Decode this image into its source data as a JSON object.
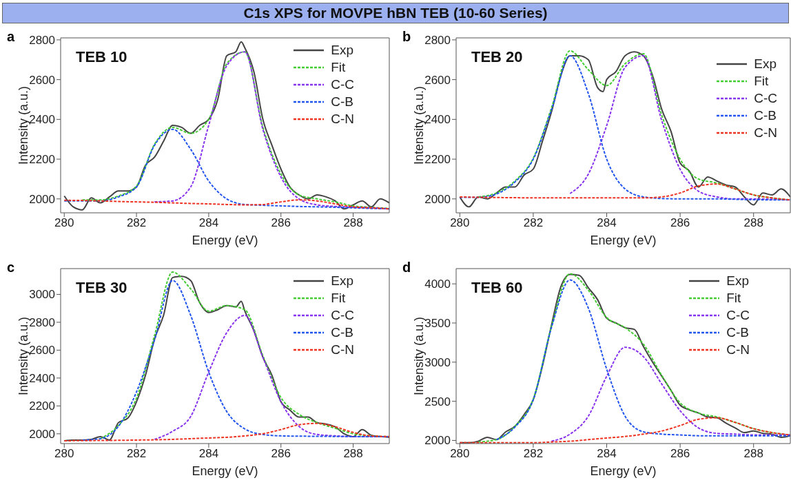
{
  "chart_data": [
    {
      "type": "line",
      "title": "C1s XPS for MOVPE hBN TEB (10-60 Series)",
      "annotations": [
        "a",
        "TEB 10"
      ],
      "xlabel": "Energy (eV)",
      "ylabel": "Intensity (a.u.)",
      "xlim": [
        279.9,
        289
      ],
      "xticks": [
        280,
        282,
        284,
        286,
        288
      ],
      "ylim": [
        1930,
        2810
      ],
      "yticks": [
        2000,
        2200,
        2400,
        2600,
        2800
      ],
      "legend": "top right",
      "x": [
        280,
        280.5,
        281,
        281.5,
        282,
        282.5,
        283,
        283.5,
        284,
        284.5,
        285,
        285.5,
        286,
        286.5,
        287,
        287.5,
        288,
        288.5,
        289
      ],
      "series": [
        {
          "name": "Exp",
          "color": "#444444",
          "line_style": "solid",
          "x": [
            280,
            280.25,
            280.5,
            280.75,
            281,
            281.25,
            281.5,
            281.75,
            282,
            282.25,
            282.5,
            282.75,
            283,
            283.25,
            283.5,
            283.75,
            284,
            284.25,
            284.5,
            284.75,
            284.9,
            285,
            285.25,
            285.5,
            285.75,
            286,
            286.25,
            286.5,
            286.75,
            287,
            287.25,
            287.5,
            287.75,
            288,
            288.25,
            288.5,
            288.75,
            289
          ],
          "values": [
            2015,
            1960,
            1945,
            2005,
            1980,
            2010,
            2040,
            2040,
            2060,
            2170,
            2210,
            2290,
            2370,
            2360,
            2330,
            2370,
            2400,
            2500,
            2720,
            2740,
            2790,
            2760,
            2640,
            2400,
            2270,
            2150,
            2060,
            2020,
            2000,
            2020,
            2010,
            1990,
            1950,
            1970,
            1990,
            1960,
            2000,
            1980
          ]
        },
        {
          "name": "Fit",
          "color": "#44cc33",
          "line_style": "dashed",
          "values": [
            null,
            1995,
            1995,
            2015,
            2065,
            2275,
            2360,
            2330,
            2400,
            2680,
            2740,
            2360,
            2125,
            2020,
            2000,
            1985,
            1965,
            1958,
            1952
          ]
        },
        {
          "name": "C-C",
          "color": "#8833ee",
          "line_style": "dashed",
          "values": [
            null,
            null,
            null,
            null,
            null,
            1985,
            1990,
            2060,
            2370,
            2670,
            2740,
            2350,
            2110,
            2000,
            1970,
            1962,
            1958,
            1955,
            1950
          ]
        },
        {
          "name": "C-B",
          "color": "#2255ee",
          "line_style": "dashed",
          "values": [
            1990,
            1990,
            1990,
            2010,
            2060,
            2270,
            2350,
            2250,
            2090,
            2000,
            1972,
            1968,
            1965,
            1962,
            1960,
            1958,
            1955,
            1952,
            1950
          ]
        },
        {
          "name": "C-N",
          "color": "#ee3322",
          "line_style": "dashed",
          "values": [
            1993,
            1992,
            1990,
            1987,
            1985,
            1983,
            1980,
            1977,
            1975,
            1972,
            1970,
            1972,
            1985,
            1995,
            1990,
            1975,
            1960,
            1955,
            1950
          ]
        }
      ]
    },
    {
      "type": "line",
      "annotations": [
        "b",
        "TEB 20"
      ],
      "xlabel": "Energy (eV)",
      "ylabel": "Intensity (a.u.)",
      "xlim": [
        279.9,
        289
      ],
      "xticks": [
        280,
        282,
        284,
        286,
        288
      ],
      "ylim": [
        1930,
        2810
      ],
      "yticks": [
        2000,
        2200,
        2400,
        2600,
        2800
      ],
      "legend": "right",
      "x": [
        280,
        280.5,
        281,
        281.5,
        282,
        282.5,
        283,
        283.5,
        284,
        284.5,
        285,
        285.5,
        286,
        286.5,
        287,
        287.5,
        288,
        288.5,
        289
      ],
      "series": [
        {
          "name": "Exp",
          "color": "#444444",
          "line_style": "solid",
          "x": [
            280,
            280.25,
            280.5,
            280.75,
            281,
            281.25,
            281.5,
            281.75,
            282,
            282.25,
            282.5,
            282.75,
            283,
            283.25,
            283.5,
            283.75,
            283.9,
            284,
            284.25,
            284.5,
            284.75,
            285,
            285.25,
            285.5,
            285.75,
            286,
            286.25,
            286.5,
            286.75,
            287,
            287.25,
            287.5,
            287.75,
            288,
            288.25,
            288.5,
            288.75,
            289
          ],
          "values": [
            2010,
            1960,
            2010,
            2000,
            2030,
            2060,
            2060,
            2120,
            2150,
            2290,
            2440,
            2620,
            2720,
            2720,
            2700,
            2560,
            2540,
            2600,
            2640,
            2720,
            2740,
            2720,
            2620,
            2450,
            2340,
            2180,
            2140,
            2060,
            2110,
            2090,
            2070,
            2060,
            2010,
            1970,
            2030,
            2020,
            2050,
            2010
          ]
        },
        {
          "name": "Fit",
          "color": "#44cc33",
          "line_style": "dashed",
          "values": [
            null,
            2010,
            2030,
            2090,
            2205,
            2460,
            2745,
            2650,
            2570,
            2680,
            2730,
            2420,
            2200,
            2100,
            2080,
            2050,
            2020,
            2005,
            1995
          ]
        },
        {
          "name": "C-C",
          "color": "#8833ee",
          "line_style": "dashed",
          "values": [
            null,
            null,
            null,
            null,
            null,
            null,
            2027,
            2125,
            2369,
            2662,
            2720,
            2393,
            2149,
            2039,
            2010,
            2000,
            2000,
            1998,
            1995
          ]
        },
        {
          "name": "C-B",
          "color": "#2255ee",
          "line_style": "dashed",
          "values": [
            2008,
            2008,
            2025,
            2085,
            2200,
            2450,
            2720,
            2530,
            2200,
            2050,
            2010,
            2002,
            2000,
            2000,
            2000,
            1998,
            1996,
            1995,
            1995
          ]
        },
        {
          "name": "C-N",
          "color": "#ee3322",
          "line_style": "dashed",
          "values": [
            2010,
            2008,
            2007,
            2006,
            2005,
            2005,
            2005,
            2005,
            2005,
            2005,
            2005,
            2010,
            2030,
            2065,
            2075,
            2050,
            2020,
            2005,
            1995
          ]
        }
      ]
    },
    {
      "type": "line",
      "annotations": [
        "c",
        "TEB 30"
      ],
      "xlabel": "Energy (eV)",
      "ylabel": "Intensity (a.u.)",
      "xlim": [
        279.9,
        289
      ],
      "xticks": [
        280,
        282,
        284,
        286,
        288
      ],
      "ylim": [
        1930,
        3185
      ],
      "yticks": [
        2000,
        2200,
        2400,
        2600,
        2800,
        3000
      ],
      "legend": "top right",
      "x": [
        280,
        280.5,
        281,
        281.5,
        282,
        282.5,
        283,
        283.5,
        284,
        284.5,
        285,
        285.5,
        286,
        286.5,
        287,
        287.5,
        288,
        288.5,
        289
      ],
      "series": [
        {
          "name": "Exp",
          "color": "#444444",
          "line_style": "solid",
          "x": [
            280,
            280.25,
            280.5,
            280.75,
            281,
            281.25,
            281.5,
            281.75,
            282,
            282.25,
            282.5,
            282.75,
            283,
            283.25,
            283.5,
            283.75,
            284,
            284.25,
            284.5,
            284.75,
            284.9,
            285,
            285.25,
            285.5,
            285.75,
            286,
            286.25,
            286.5,
            286.75,
            287,
            287.25,
            287.5,
            287.75,
            288,
            288.25,
            288.5,
            288.75,
            289
          ],
          "values": [
            1950,
            1955,
            1955,
            1960,
            1980,
            1955,
            2080,
            2110,
            2230,
            2420,
            2680,
            2850,
            3120,
            3130,
            3100,
            2940,
            2870,
            2890,
            2920,
            2910,
            2950,
            2880,
            2740,
            2550,
            2420,
            2230,
            2170,
            2120,
            2120,
            2080,
            2070,
            2050,
            2000,
            1980,
            2030,
            1990,
            1980,
            1975
          ]
        },
        {
          "name": "Fit",
          "color": "#44cc33",
          "line_style": "dashed",
          "values": [
            null,
            null,
            1965,
            2060,
            2255,
            2705,
            3160,
            3040,
            2880,
            2920,
            2890,
            2560,
            2260,
            2140,
            2080,
            2040,
            2000,
            1985,
            1980
          ]
        },
        {
          "name": "C-C",
          "color": "#8833ee",
          "line_style": "dashed",
          "values": [
            null,
            null,
            null,
            null,
            null,
            1960,
            2018,
            2124,
            2443,
            2726,
            2850,
            2549,
            2230,
            2053,
            1995,
            1985,
            1980,
            1980,
            1980
          ]
        },
        {
          "name": "C-B",
          "color": "#2255ee",
          "line_style": "dashed",
          "values": [
            null,
            1955,
            1965,
            2053,
            2300,
            2673,
            3100,
            2850,
            2443,
            2159,
            2035,
            1995,
            1985,
            1983,
            1982,
            1981,
            1980,
            1980,
            1980
          ]
        },
        {
          "name": "C-N",
          "color": "#ee3322",
          "line_style": "dashed",
          "values": [
            1950,
            1951,
            1952,
            1953,
            1955,
            1957,
            1960,
            1965,
            1970,
            1975,
            1985,
            2000,
            2030,
            2065,
            2075,
            2050,
            2010,
            1985,
            1980
          ]
        }
      ]
    },
    {
      "type": "line",
      "annotations": [
        "d",
        "TEB 60"
      ],
      "xlabel": "Energy (eV)",
      "ylabel": "Intensity (a.u.)",
      "xlim": [
        279.9,
        289
      ],
      "xticks": [
        280,
        282,
        284,
        286,
        288
      ],
      "ylim": [
        1960,
        4195
      ],
      "yticks": [
        2000,
        2500,
        3000,
        3500,
        4000
      ],
      "legend": "top right",
      "x": [
        280,
        280.5,
        281,
        281.5,
        282,
        282.5,
        283,
        283.5,
        284,
        284.5,
        285,
        285.5,
        286,
        286.5,
        287,
        287.5,
        288,
        288.5,
        289
      ],
      "series": [
        {
          "name": "Exp",
          "color": "#444444",
          "line_style": "solid",
          "x": [
            280,
            280.25,
            280.5,
            280.75,
            281,
            281.25,
            281.5,
            281.75,
            282,
            282.25,
            282.5,
            282.75,
            283,
            283.25,
            283.5,
            283.75,
            284,
            284.25,
            284.5,
            284.75,
            285,
            285.25,
            285.5,
            285.75,
            286,
            286.25,
            286.5,
            286.75,
            287,
            287.25,
            287.5,
            287.75,
            288,
            288.25,
            288.5,
            288.75,
            289
          ],
          "values": [
            1970,
            1970,
            1990,
            2040,
            2010,
            2110,
            2180,
            2330,
            2520,
            2950,
            3480,
            3960,
            4120,
            4110,
            3950,
            3800,
            3560,
            3500,
            3440,
            3420,
            3200,
            3000,
            2820,
            2640,
            2450,
            2390,
            2350,
            2300,
            2290,
            2220,
            2160,
            2100,
            2120,
            2090,
            2080,
            2040,
            2060
          ]
        },
        {
          "name": "Fit",
          "color": "#44cc33",
          "line_style": "dashed",
          "values": [
            null,
            1980,
            2010,
            2180,
            2530,
            3460,
            4130,
            3920,
            3570,
            3440,
            3230,
            2830,
            2480,
            2350,
            2300,
            2230,
            2150,
            2100,
            2070
          ]
        },
        {
          "name": "C-C",
          "color": "#8833ee",
          "line_style": "dashed",
          "values": [
            null,
            null,
            null,
            null,
            null,
            1990,
            2080,
            2310,
            2820,
            3190,
            3070,
            2720,
            2380,
            2160,
            2090,
            2080,
            2070,
            2070,
            2070
          ]
        },
        {
          "name": "C-B",
          "color": "#2255ee",
          "line_style": "dashed",
          "values": [
            null,
            null,
            2010,
            2170,
            2520,
            3450,
            4050,
            3690,
            2910,
            2310,
            2110,
            2080,
            2070,
            2060,
            2060,
            2060,
            2060,
            2060,
            2060
          ]
        },
        {
          "name": "C-N",
          "color": "#ee3322",
          "line_style": "dashed",
          "values": [
            1970,
            1970,
            1970,
            1970,
            1970,
            1980,
            1990,
            2010,
            2030,
            2050,
            2080,
            2120,
            2190,
            2270,
            2290,
            2230,
            2150,
            2100,
            2070
          ]
        }
      ]
    }
  ]
}
